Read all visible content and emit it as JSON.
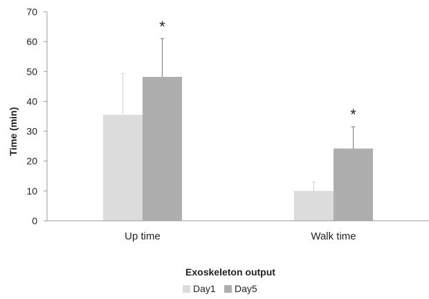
{
  "chart_data": {
    "type": "bar",
    "categories": [
      "Up time",
      "Walk time"
    ],
    "series": [
      {
        "name": "Day1",
        "values": [
          35.5,
          10
        ],
        "error": [
          13.8,
          3
        ],
        "color": "#dcdcdd"
      },
      {
        "name": "Day5",
        "values": [
          48.2,
          24.2
        ],
        "error": [
          12.8,
          7.3
        ],
        "color": "#aeaeaf"
      }
    ],
    "annotations": [
      {
        "category": "Up time",
        "series": "Day5",
        "text": "*"
      },
      {
        "category": "Walk time",
        "series": "Day5",
        "text": "*"
      }
    ],
    "xlabel": "Exoskeleton output",
    "ylabel": "Time (min)",
    "ylim": [
      0,
      70
    ],
    "yticks": [
      0,
      10,
      20,
      30,
      40,
      50,
      60,
      70
    ],
    "grid": false,
    "legend": "bottom"
  }
}
